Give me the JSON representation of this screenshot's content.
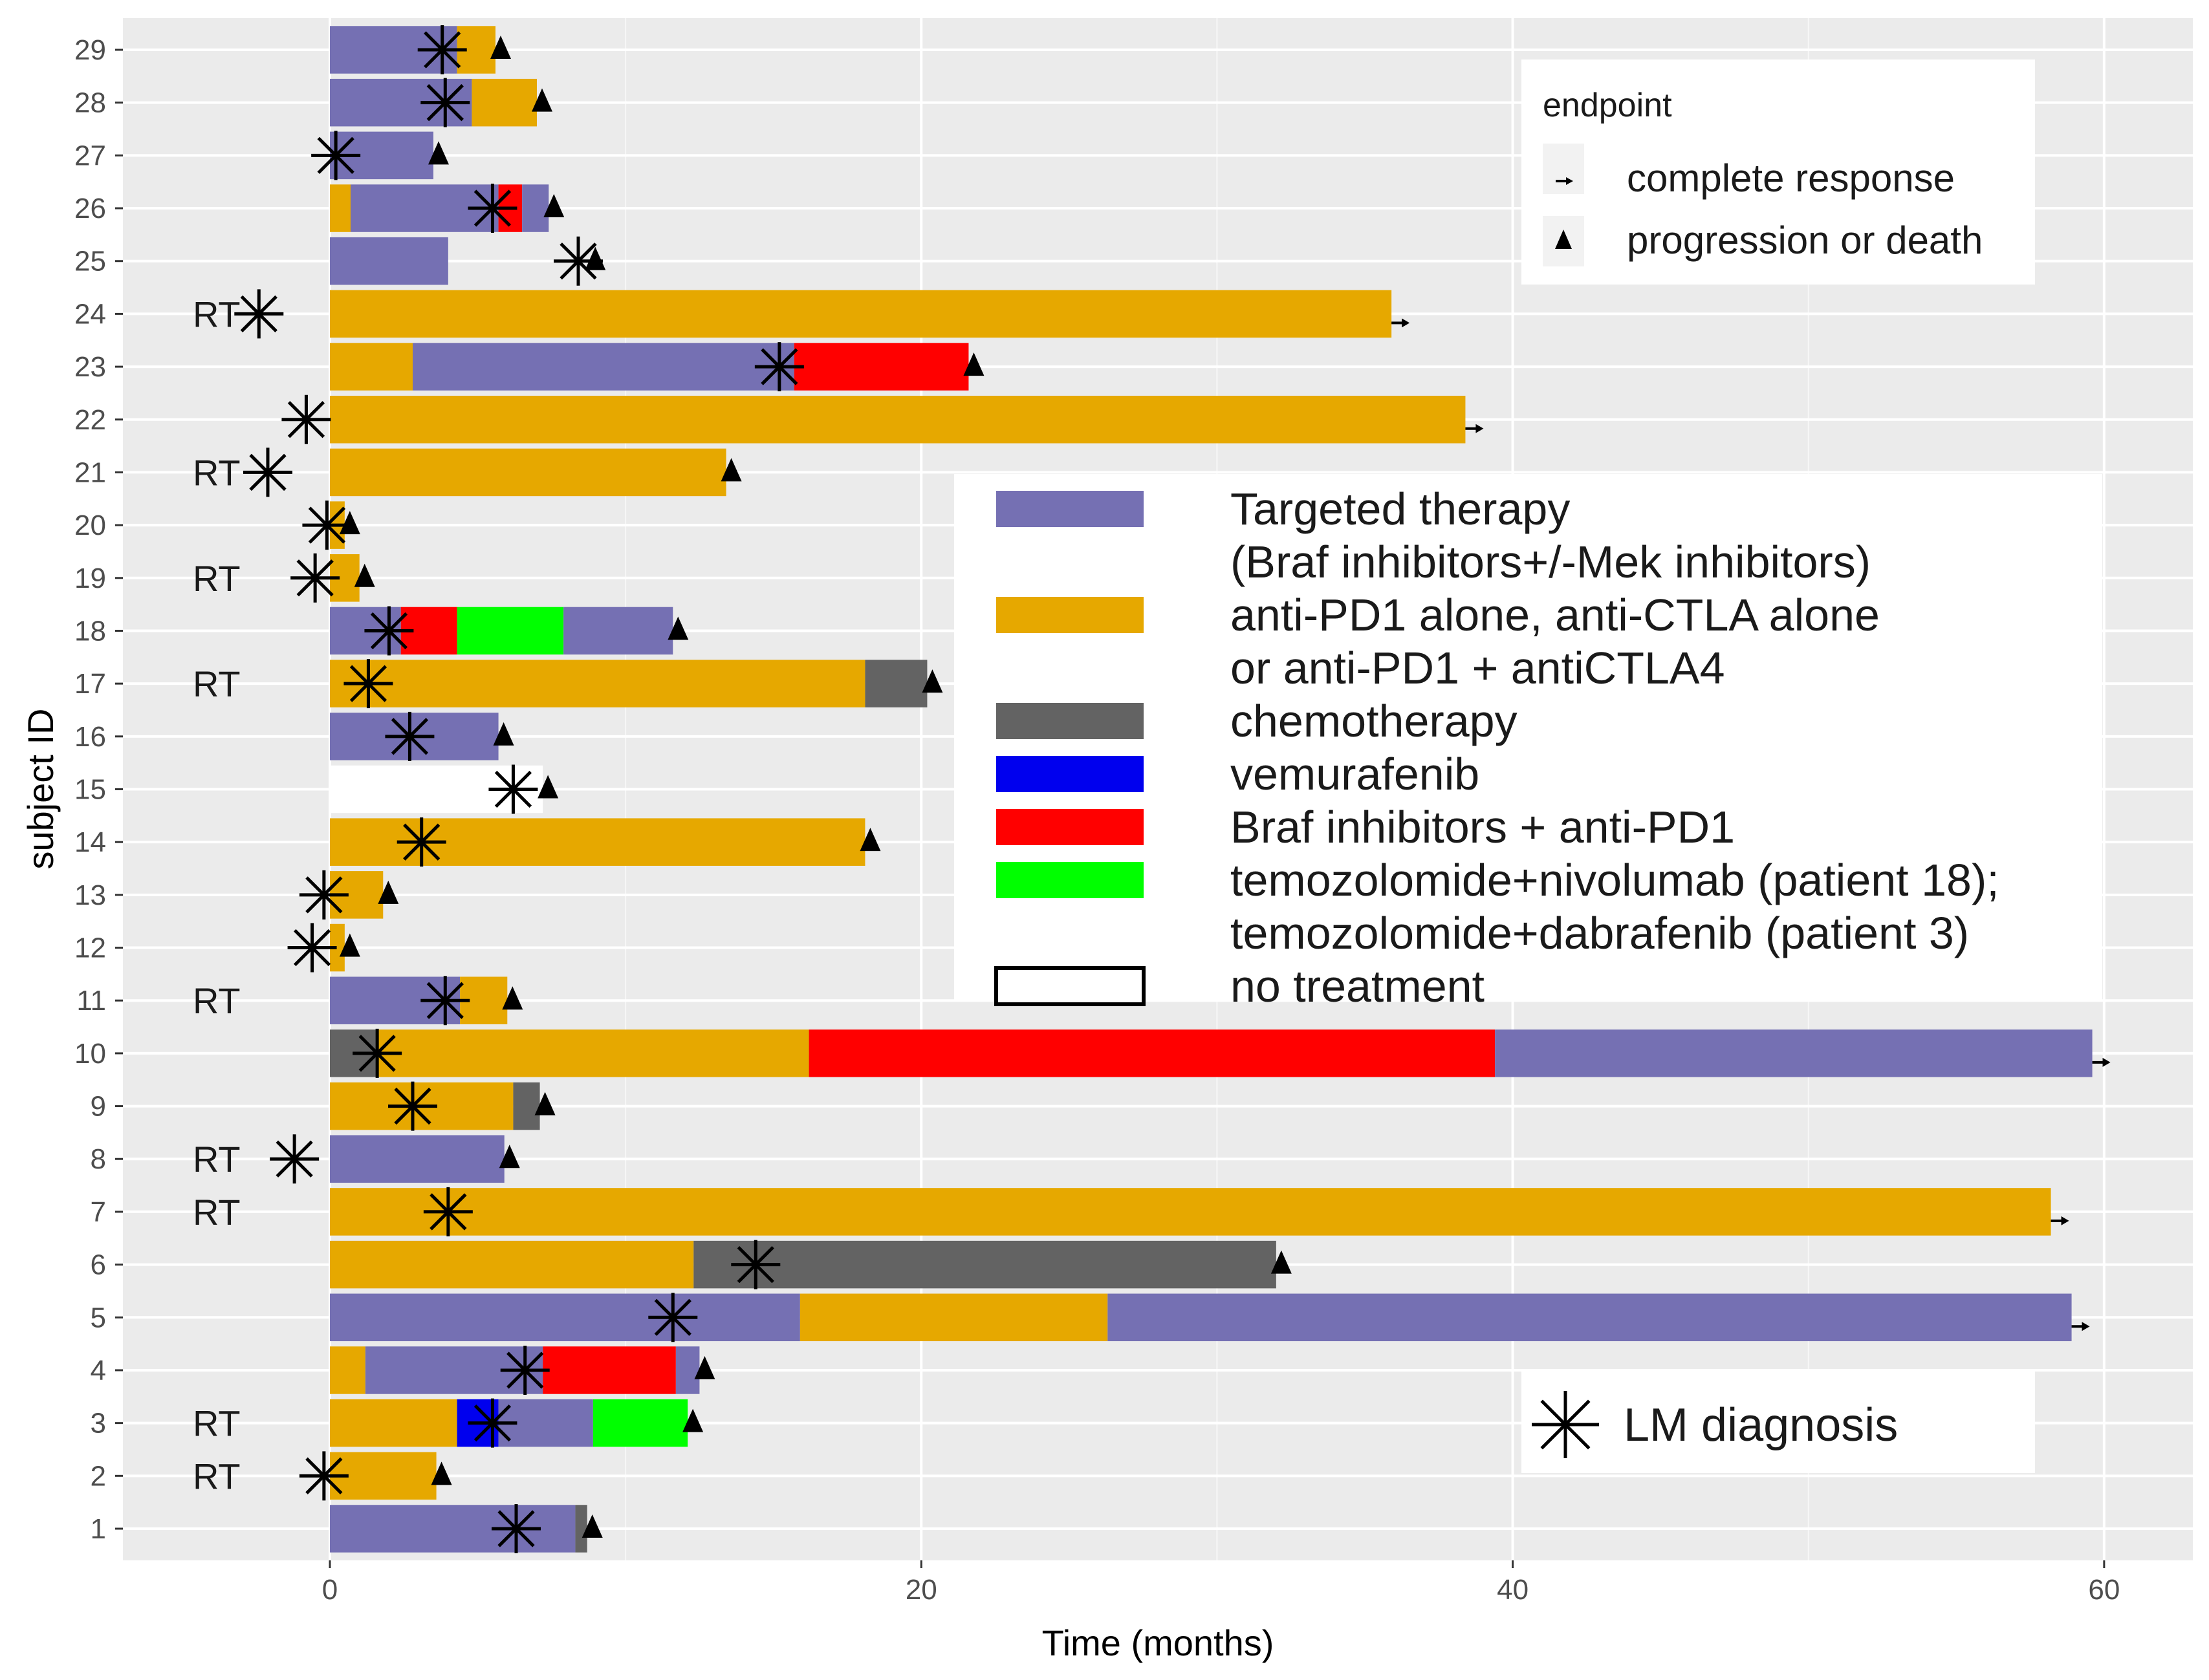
{
  "colors": {
    "panel_bg": "#ebebeb",
    "grid_major": "#ffffff",
    "targeted": "#7570b3",
    "antipd1": "#e6a800",
    "chemo": "#636363",
    "vemurafenib": "#0000ee",
    "braf_pd1": "#ff0000",
    "temo": "#00ff00",
    "none": "#ffffff"
  },
  "chart_data": {
    "type": "swimmer",
    "xlabel": "Time (months)",
    "ylabel": "subject ID",
    "xlim": [
      -7,
      63
    ],
    "ylim": [
      0.4,
      29.6
    ],
    "x_ticks": [
      0,
      20,
      40,
      60
    ],
    "x_tick_labels": [
      "0",
      "20",
      "40",
      "60"
    ],
    "y_tick_labels": [
      "1",
      "2",
      "3",
      "4",
      "5",
      "6",
      "7",
      "8",
      "9",
      "10",
      "11",
      "12",
      "13",
      "14",
      "15",
      "16",
      "17",
      "18",
      "19",
      "20",
      "21",
      "22",
      "23",
      "24",
      "25",
      "26",
      "27",
      "28",
      "29"
    ],
    "rt_label": "RT",
    "rt_subjects": [
      2,
      3,
      7,
      8,
      11,
      17,
      19,
      21,
      24
    ],
    "subjects": [
      {
        "id": 1,
        "segments": [
          [
            "targeted",
            0,
            8.3
          ],
          [
            "chemo",
            8.3,
            8.7
          ]
        ],
        "lm": 6.3,
        "endpoint": "pd",
        "end": 8.7
      },
      {
        "id": 2,
        "segments": [
          [
            "antipd1",
            0,
            3.6
          ]
        ],
        "lm": -0.2,
        "endpoint": "pd",
        "end": 3.6
      },
      {
        "id": 3,
        "segments": [
          [
            "antipd1",
            0,
            4.3
          ],
          [
            "vemurafenib",
            4.3,
            5.7
          ],
          [
            "targeted",
            5.7,
            8.9
          ],
          [
            "temo",
            8.9,
            12.1
          ]
        ],
        "lm": 5.5,
        "endpoint": "pd",
        "end": 12.1
      },
      {
        "id": 4,
        "segments": [
          [
            "antipd1",
            0,
            1.2
          ],
          [
            "targeted",
            1.2,
            7.2
          ],
          [
            "braf_pd1",
            7.2,
            11.7
          ],
          [
            "targeted",
            11.7,
            12.5
          ]
        ],
        "lm": 6.6,
        "endpoint": "pd",
        "end": 12.5
      },
      {
        "id": 5,
        "segments": [
          [
            "targeted",
            0,
            15.9
          ],
          [
            "antipd1",
            15.9,
            26.3
          ],
          [
            "targeted",
            26.3,
            58.9
          ]
        ],
        "lm": 11.6,
        "endpoint": "cr",
        "end": 58.9
      },
      {
        "id": 6,
        "segments": [
          [
            "antipd1",
            0,
            12.3
          ],
          [
            "chemo",
            12.3,
            32.0
          ]
        ],
        "lm": 14.4,
        "endpoint": "pd",
        "end": 32.0
      },
      {
        "id": 7,
        "segments": [
          [
            "antipd1",
            0,
            58.2
          ]
        ],
        "lm": 4.0,
        "endpoint": "cr",
        "end": 58.2
      },
      {
        "id": 8,
        "segments": [
          [
            "targeted",
            0,
            5.9
          ]
        ],
        "lm": -1.2,
        "endpoint": "pd",
        "end": 5.9
      },
      {
        "id": 9,
        "segments": [
          [
            "antipd1",
            0,
            6.2
          ],
          [
            "chemo",
            6.2,
            7.1
          ]
        ],
        "lm": 2.8,
        "endpoint": "pd",
        "end": 7.1
      },
      {
        "id": 10,
        "segments": [
          [
            "chemo",
            0,
            1.6
          ],
          [
            "antipd1",
            1.6,
            16.2
          ],
          [
            "braf_pd1",
            16.2,
            39.4
          ],
          [
            "targeted",
            39.4,
            59.6
          ]
        ],
        "lm": 1.6,
        "endpoint": "cr",
        "end": 59.6
      },
      {
        "id": 11,
        "segments": [
          [
            "targeted",
            0,
            4.4
          ],
          [
            "antipd1",
            4.4,
            6.0
          ]
        ],
        "lm": 3.9,
        "endpoint": "pd",
        "end": 6.0
      },
      {
        "id": 12,
        "segments": [
          [
            "antipd1",
            0,
            0.5
          ]
        ],
        "lm": -0.6,
        "endpoint": "pd",
        "end": 0.5
      },
      {
        "id": 13,
        "segments": [
          [
            "antipd1",
            0,
            1.8
          ]
        ],
        "lm": -0.2,
        "endpoint": "pd",
        "end": 1.8
      },
      {
        "id": 14,
        "segments": [
          [
            "antipd1",
            0,
            18.1
          ]
        ],
        "lm": 3.1,
        "endpoint": "pd",
        "end": 18.1
      },
      {
        "id": 15,
        "segments": [
          [
            "none",
            0,
            7.2
          ]
        ],
        "lm": 6.2,
        "endpoint": "pd",
        "end": 7.2
      },
      {
        "id": 16,
        "segments": [
          [
            "targeted",
            0,
            5.7
          ]
        ],
        "lm": 2.7,
        "endpoint": "pd",
        "end": 5.7
      },
      {
        "id": 17,
        "segments": [
          [
            "antipd1",
            0,
            18.1
          ],
          [
            "chemo",
            18.1,
            20.2
          ]
        ],
        "lm": 1.3,
        "endpoint": "pd",
        "end": 20.2
      },
      {
        "id": 18,
        "segments": [
          [
            "targeted",
            0,
            2.4
          ],
          [
            "braf_pd1",
            2.4,
            4.3
          ],
          [
            "temo",
            4.3,
            7.9
          ],
          [
            "targeted",
            7.9,
            11.6
          ]
        ],
        "lm": 2.0,
        "endpoint": "pd",
        "end": 11.6
      },
      {
        "id": 19,
        "segments": [
          [
            "antipd1",
            0,
            1.0
          ]
        ],
        "lm": -0.5,
        "endpoint": "pd",
        "end": 1.0
      },
      {
        "id": 20,
        "segments": [
          [
            "antipd1",
            0,
            0.5
          ]
        ],
        "lm": -0.1,
        "endpoint": "pd",
        "end": 0.5
      },
      {
        "id": 21,
        "segments": [
          [
            "antipd1",
            0,
            13.4
          ]
        ],
        "lm": -2.1,
        "endpoint": "pd",
        "end": 13.4
      },
      {
        "id": 22,
        "segments": [
          [
            "antipd1",
            0,
            38.4
          ]
        ],
        "lm": -0.8,
        "endpoint": "cr",
        "end": 38.4
      },
      {
        "id": 23,
        "segments": [
          [
            "antipd1",
            0,
            2.8
          ],
          [
            "targeted",
            2.8,
            15.7
          ],
          [
            "braf_pd1",
            15.7,
            21.6
          ]
        ],
        "lm": 15.2,
        "endpoint": "pd",
        "end": 21.6
      },
      {
        "id": 24,
        "segments": [
          [
            "antipd1",
            0,
            35.9
          ]
        ],
        "lm": -2.4,
        "endpoint": "cr",
        "end": 35.9
      },
      {
        "id": 25,
        "segments": [
          [
            "targeted",
            0,
            4.0
          ]
        ],
        "lm": 8.4,
        "endpoint": "pd",
        "end": 8.8
      },
      {
        "id": 26,
        "segments": [
          [
            "antipd1",
            0,
            0.7
          ],
          [
            "targeted",
            0.7,
            5.7
          ],
          [
            "braf_pd1",
            5.7,
            6.5
          ],
          [
            "targeted",
            6.5,
            7.4
          ]
        ],
        "lm": 5.5,
        "endpoint": "pd",
        "end": 7.4
      },
      {
        "id": 27,
        "segments": [
          [
            "targeted",
            0,
            3.5
          ]
        ],
        "lm": 0.2,
        "endpoint": "pd",
        "end": 3.5
      },
      {
        "id": 28,
        "segments": [
          [
            "targeted",
            0,
            4.8
          ],
          [
            "antipd1",
            4.8,
            7.0
          ]
        ],
        "lm": 3.9,
        "endpoint": "pd",
        "end": 7.0
      },
      {
        "id": 29,
        "segments": [
          [
            "targeted",
            0,
            4.3
          ],
          [
            "antipd1",
            4.3,
            5.6
          ]
        ],
        "lm": 3.8,
        "endpoint": "pd",
        "end": 5.6
      }
    ]
  },
  "legend": {
    "treatments": [
      {
        "key": "targeted",
        "line1": "Targeted therapy",
        "line2": "(Braf inhibitors+/-Mek inhibitors)"
      },
      {
        "key": "antipd1",
        "line1": "anti-PD1 alone, anti-CTLA alone",
        "line2": "or anti-PD1 + antiCTLA4"
      },
      {
        "key": "chemo",
        "line1": "chemotherapy"
      },
      {
        "key": "vemurafenib",
        "line1": "vemurafenib"
      },
      {
        "key": "braf_pd1",
        "line1": "Braf inhibitors + anti-PD1"
      },
      {
        "key": "temo",
        "line1": "temozolomide+nivolumab (patient 18);",
        "line2": "temozolomide+dabrafenib (patient 3)"
      },
      {
        "key": "none",
        "line1": "no treatment"
      }
    ],
    "endpoint": {
      "title": "endpoint",
      "complete_response": "complete response",
      "progression": "progression or death"
    },
    "lm": "LM diagnosis"
  }
}
